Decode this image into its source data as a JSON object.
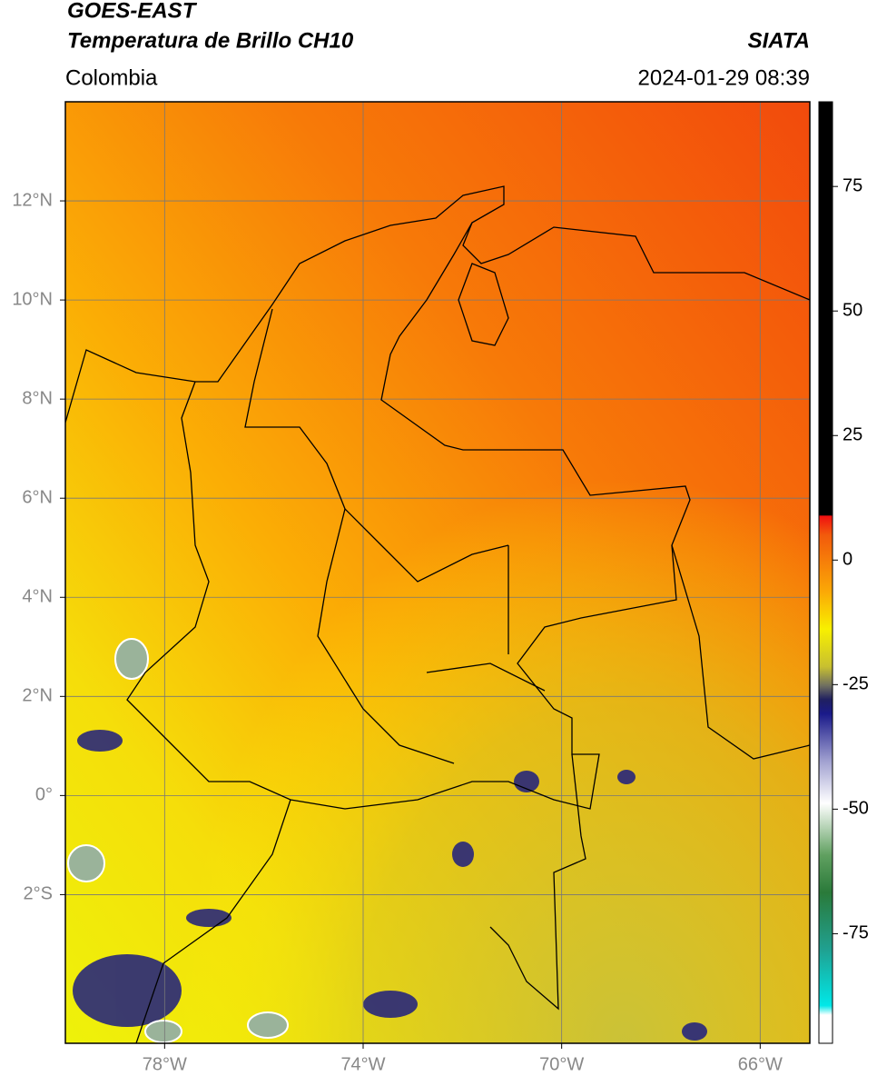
{
  "header": {
    "title": "GOES-EAST",
    "subtitle": "Temperatura de Brillo CH10",
    "source": "SIATA",
    "region": "Colombia",
    "timestamp": "2024-01-29 08:39"
  },
  "map": {
    "lon_lim": [
      -80,
      -65
    ],
    "lat_lim": [
      -5,
      14
    ],
    "grid": true,
    "lon_ticks": [
      {
        "value": -78,
        "label": "78°W"
      },
      {
        "value": -74,
        "label": "74°W"
      },
      {
        "value": -70,
        "label": "70°W"
      },
      {
        "value": -66,
        "label": "66°W"
      }
    ],
    "lat_ticks": [
      {
        "value": 12,
        "label": "12°N"
      },
      {
        "value": 10,
        "label": "10°N"
      },
      {
        "value": 8,
        "label": "8°N"
      },
      {
        "value": 6,
        "label": "6°N"
      },
      {
        "value": 4,
        "label": "4°N"
      },
      {
        "value": 2,
        "label": "2°N"
      },
      {
        "value": 0,
        "label": "0°"
      },
      {
        "value": -2,
        "label": "2°S"
      }
    ]
  },
  "colorbar": {
    "lim": [
      -97,
      92
    ],
    "ticks": [
      75,
      50,
      25,
      0,
      -25,
      -50,
      -75
    ]
  }
}
